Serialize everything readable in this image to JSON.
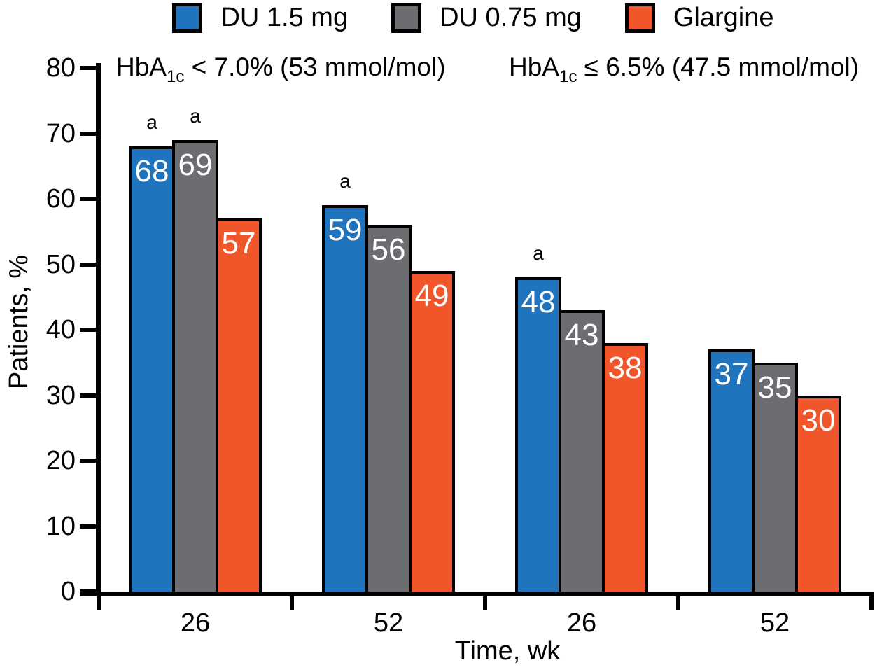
{
  "chart_data": {
    "type": "bar",
    "title": "",
    "xlabel": "Time, wk",
    "ylabel": "Patients, %",
    "ylim": [
      0,
      80
    ],
    "yticks": [
      0,
      10,
      20,
      30,
      40,
      50,
      60,
      70,
      80
    ],
    "categories": [
      "26",
      "52",
      "26",
      "52"
    ],
    "panels": [
      {
        "prefix": "HbA",
        "sub": "1c",
        "rest": " < 7.0% (53 mmol/mol)"
      },
      {
        "prefix": "HbA",
        "sub": "1c",
        "rest": " ≤ 6.5% (47.5 mmol/mol)"
      }
    ],
    "series": [
      {
        "name": "DU 1.5 mg",
        "color": "#1f74bd",
        "values": [
          68,
          59,
          48,
          37
        ],
        "markers": [
          "a",
          "a",
          "a",
          ""
        ]
      },
      {
        "name": "DU 0.75 mg",
        "color": "#6c6d70",
        "values": [
          69,
          56,
          43,
          35
        ],
        "markers": [
          "a",
          "",
          "",
          ""
        ]
      },
      {
        "name": "Glargine",
        "color": "#f0562a",
        "values": [
          57,
          49,
          38,
          30
        ],
        "markers": [
          "",
          "",
          "",
          ""
        ]
      }
    ],
    "legend_position": "top",
    "grid": false,
    "bar_label_color": "#ffffff",
    "axis_color": "#000000",
    "significance_note_marker": "a"
  }
}
